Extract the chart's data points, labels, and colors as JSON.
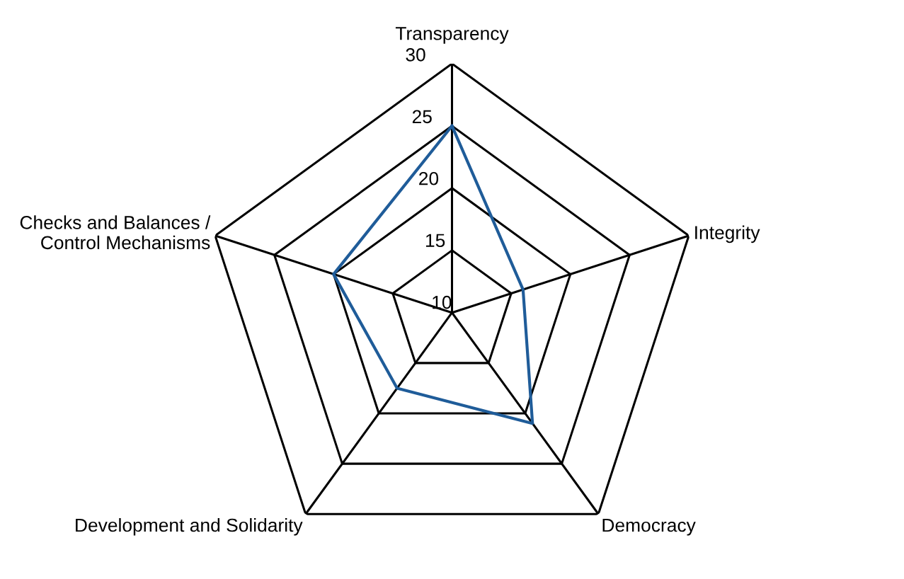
{
  "chart_data": {
    "type": "radar",
    "categories": [
      "Transparency",
      "Integrity",
      "Democracy",
      "Development and Solidarity",
      "Checks and Balances /\nControl Mechanisms"
    ],
    "series": [
      {
        "color": "#1f5c99",
        "values": [
          25,
          16,
          21,
          17.5,
          20
        ]
      }
    ],
    "ylim": [
      10,
      30
    ],
    "yticks": [
      10,
      15,
      20,
      25,
      30
    ],
    "grid": true,
    "marker": "none",
    "line_style": "solid"
  }
}
